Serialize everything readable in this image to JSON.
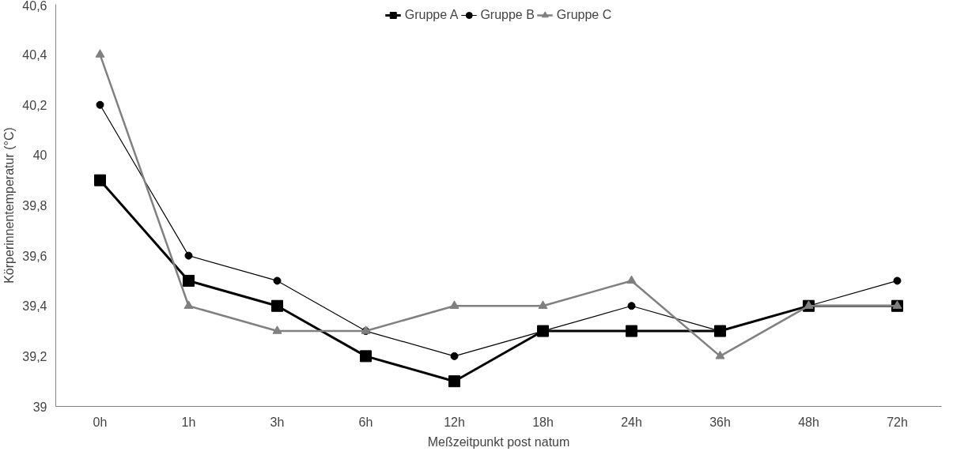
{
  "chart_data": {
    "type": "line",
    "xlabel": "Meßzeitpunkt post natum",
    "ylabel": "Körperinnentemperatur (°C)",
    "categories": [
      "0h",
      "1h",
      "3h",
      "6h",
      "12h",
      "18h",
      "24h",
      "36h",
      "48h",
      "72h"
    ],
    "series": [
      {
        "name": "Gruppe A",
        "color": "#000000",
        "marker": "square",
        "values": [
          39.9,
          39.5,
          39.4,
          39.2,
          39.1,
          39.3,
          39.3,
          39.3,
          39.4,
          39.4
        ]
      },
      {
        "name": "Gruppe B",
        "color": "#000000",
        "marker": "circle",
        "values": [
          40.2,
          39.6,
          39.5,
          39.3,
          39.2,
          39.3,
          39.4,
          39.3,
          39.4,
          39.5
        ]
      },
      {
        "name": "Gruppe C",
        "color": "#808080",
        "marker": "triangle",
        "values": [
          40.4,
          39.4,
          39.3,
          39.3,
          39.4,
          39.4,
          39.5,
          39.2,
          39.4,
          39.4
        ]
      }
    ],
    "ylim": [
      39,
      40.6
    ],
    "yticks": [
      39,
      {
        "value": 39.2,
        "label": "39,2"
      },
      {
        "value": 39.4,
        "label": "39,4"
      },
      {
        "value": 39.6,
        "label": "39,6"
      },
      {
        "value": 39.8,
        "label": "39,8"
      },
      40,
      {
        "value": 40.2,
        "label": "40,2"
      },
      {
        "value": 40.4,
        "label": "40,4"
      },
      {
        "value": 40.6,
        "label": "40,6"
      }
    ],
    "grid": false,
    "legend": "top",
    "line_style": "solid"
  }
}
